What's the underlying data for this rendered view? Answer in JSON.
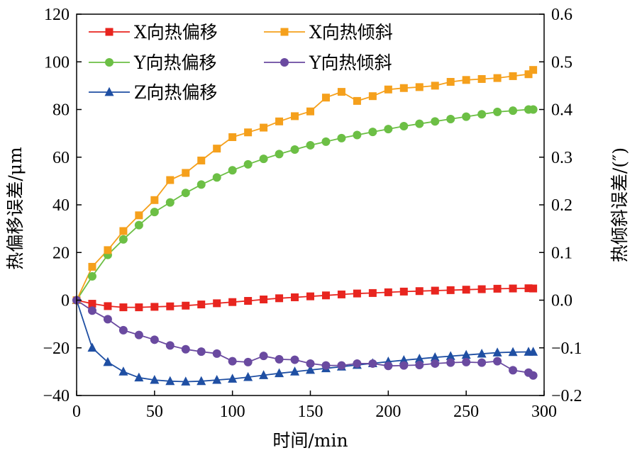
{
  "chart_data": {
    "type": "line",
    "xlabel": "时间/min",
    "ylabel_left": "热偏移误差/μm",
    "ylabel_right": "热倾斜误差/(″)",
    "xlim": [
      0,
      300
    ],
    "ylim_left": [
      -40,
      120
    ],
    "ylim_right": [
      -0.2,
      0.6
    ],
    "xticks": [
      "0",
      "50",
      "100",
      "150",
      "200",
      "250",
      "300"
    ],
    "yticks_left": [
      "−40",
      "−20",
      "0",
      "20",
      "40",
      "60",
      "80",
      "100",
      "120"
    ],
    "yticks_right": [
      "−0.2",
      "−0.1",
      "0.0",
      "0.1",
      "0.2",
      "0.3",
      "0.4",
      "0.5",
      "0.6"
    ],
    "grid": false,
    "legend_position": "top-left",
    "series": [
      {
        "name": "X向热偏移",
        "axis": "left",
        "color": "#e8251f",
        "marker": "square",
        "x": [
          0,
          10,
          20,
          30,
          40,
          50,
          60,
          70,
          80,
          90,
          100,
          110,
          120,
          130,
          140,
          150,
          160,
          170,
          180,
          190,
          200,
          210,
          220,
          230,
          240,
          250,
          260,
          270,
          280,
          290,
          293
        ],
        "y": [
          0,
          -1.5,
          -2.5,
          -3,
          -3,
          -2.8,
          -2.6,
          -2.3,
          -1.8,
          -1.3,
          -0.8,
          -0.3,
          0.3,
          0.8,
          1.2,
          1.6,
          2.0,
          2.4,
          2.8,
          3.0,
          3.3,
          3.6,
          3.8,
          4.0,
          4.2,
          4.4,
          4.6,
          4.8,
          4.9,
          5.0,
          4.9
        ]
      },
      {
        "name": "Y向热偏移",
        "axis": "left",
        "color": "#6cbf45",
        "marker": "circle",
        "x": [
          0,
          10,
          20,
          30,
          40,
          50,
          60,
          70,
          80,
          90,
          100,
          110,
          120,
          130,
          140,
          150,
          160,
          170,
          180,
          190,
          200,
          210,
          220,
          230,
          240,
          250,
          260,
          270,
          280,
          290,
          293
        ],
        "y": [
          0,
          10,
          19,
          25.5,
          31.5,
          37,
          41,
          45,
          48.5,
          51.5,
          54.5,
          57,
          59.3,
          61.3,
          63.2,
          65,
          66.5,
          68,
          69.3,
          70.6,
          71.8,
          73,
          74,
          75,
          76,
          77,
          78,
          79,
          79.5,
          80,
          80
        ]
      },
      {
        "name": "Z向热偏移",
        "axis": "left",
        "color": "#1f4fa3",
        "marker": "triangle",
        "x": [
          0,
          10,
          20,
          30,
          40,
          50,
          60,
          70,
          80,
          90,
          100,
          110,
          120,
          130,
          140,
          150,
          160,
          170,
          180,
          190,
          200,
          210,
          220,
          230,
          240,
          250,
          260,
          270,
          280,
          290,
          293
        ],
        "y": [
          0,
          -20,
          -26,
          -30,
          -32.5,
          -33.5,
          -34,
          -34.2,
          -34,
          -33.5,
          -33,
          -32.3,
          -31.5,
          -30.7,
          -30,
          -29.3,
          -28.6,
          -27.9,
          -27.2,
          -26.5,
          -25.8,
          -25.2,
          -24.6,
          -24,
          -23.5,
          -23,
          -22.5,
          -22,
          -21.8,
          -21.7,
          -21.7
        ]
      },
      {
        "name": "X向热倾斜",
        "axis": "right",
        "color": "#f5a01c",
        "marker": "square",
        "x": [
          0,
          10,
          20,
          30,
          40,
          50,
          60,
          70,
          80,
          90,
          100,
          110,
          120,
          130,
          140,
          150,
          160,
          170,
          180,
          190,
          200,
          210,
          220,
          230,
          240,
          250,
          260,
          270,
          280,
          290,
          293
        ],
        "y": [
          0,
          0.07,
          0.105,
          0.145,
          0.178,
          0.21,
          0.252,
          0.267,
          0.293,
          0.318,
          0.342,
          0.352,
          0.362,
          0.375,
          0.386,
          0.396,
          0.425,
          0.437,
          0.418,
          0.428,
          0.442,
          0.445,
          0.447,
          0.45,
          0.458,
          0.462,
          0.464,
          0.466,
          0.47,
          0.474,
          0.483
        ]
      },
      {
        "name": "Y向热倾斜",
        "axis": "right",
        "color": "#6a4aa0",
        "marker": "circle",
        "x": [
          0,
          10,
          20,
          30,
          40,
          50,
          60,
          70,
          80,
          90,
          100,
          110,
          120,
          130,
          140,
          150,
          160,
          170,
          180,
          190,
          200,
          210,
          220,
          230,
          240,
          250,
          260,
          270,
          280,
          290,
          293
        ],
        "y": [
          0,
          -0.022,
          -0.04,
          -0.063,
          -0.073,
          -0.083,
          -0.095,
          -0.103,
          -0.108,
          -0.112,
          -0.128,
          -0.13,
          -0.117,
          -0.124,
          -0.125,
          -0.133,
          -0.137,
          -0.137,
          -0.133,
          -0.133,
          -0.138,
          -0.137,
          -0.136,
          -0.133,
          -0.131,
          -0.13,
          -0.131,
          -0.128,
          -0.147,
          -0.152,
          -0.158
        ]
      }
    ]
  }
}
